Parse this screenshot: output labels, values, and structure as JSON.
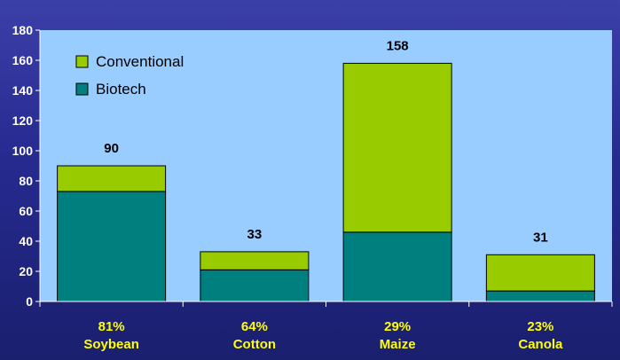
{
  "chart_data": {
    "type": "bar",
    "stacked": true,
    "categories": [
      "Soybean",
      "Cotton",
      "Maize",
      "Canola"
    ],
    "category_percent_labels": [
      "81%",
      "64%",
      "29%",
      "23%"
    ],
    "series": [
      {
        "name": "Biotech",
        "values": [
          73,
          21,
          46,
          7
        ],
        "color": "#007f7f"
      },
      {
        "name": "Conventional",
        "values": [
          17,
          12,
          112,
          24
        ],
        "color": "#99cc00"
      }
    ],
    "totals": [
      "90",
      "33",
      "158",
      "31"
    ],
    "ylim": [
      0,
      180
    ],
    "yticks": [
      "0",
      "20",
      "40",
      "60",
      "80",
      "100",
      "120",
      "140",
      "160",
      "180"
    ],
    "grid": false,
    "legend_position": "top-left",
    "colors": {
      "plot_background": "#99ccff",
      "page_background": "#262a8f",
      "axis_text": "#ffffff",
      "category_text": "#ffff00",
      "bar_outline": "#000000"
    }
  }
}
